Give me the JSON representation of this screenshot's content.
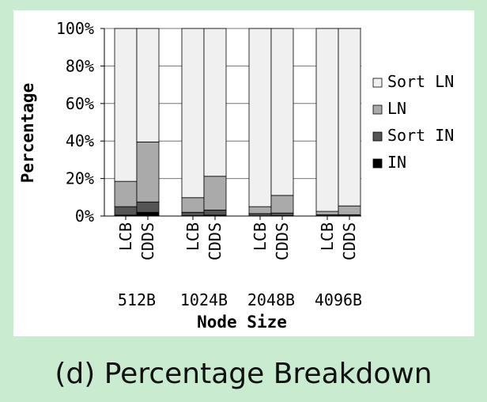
{
  "caption": "(d) Percentage Breakdown",
  "chart_data": {
    "type": "bar",
    "stacked": true,
    "percent": true,
    "xlabel": "Node Size",
    "ylabel": "Percentage",
    "ylim": [
      0,
      100
    ],
    "y_ticks": [
      "0%",
      "20%",
      "40%",
      "60%",
      "80%",
      "100%"
    ],
    "groups": [
      "512B",
      "1024B",
      "2048B",
      "4096B"
    ],
    "categories": [
      "LCB",
      "CDDS",
      "LCB",
      "CDDS",
      "LCB",
      "CDDS",
      "LCB",
      "CDDS"
    ],
    "legend_position": "right",
    "series": [
      {
        "name": "IN",
        "color": "#000000",
        "values": [
          0.5,
          2,
          0.2,
          0.5,
          0.1,
          0.2,
          0.1,
          0.1
        ]
      },
      {
        "name": "Sort IN",
        "color": "#555555",
        "values": [
          4.5,
          5.5,
          1.8,
          2.7,
          1.2,
          1.4,
          0.6,
          0.6
        ]
      },
      {
        "name": "LN",
        "color": "#aaaaaa",
        "values": [
          13.5,
          32,
          7.8,
          18,
          3.7,
          9.4,
          1.8,
          4.7
        ]
      },
      {
        "name": "Sort LN",
        "color": "#f0f0f0",
        "values": [
          81.5,
          60.5,
          90.2,
          78.8,
          95,
          89,
          97.5,
          94.6
        ]
      }
    ]
  }
}
